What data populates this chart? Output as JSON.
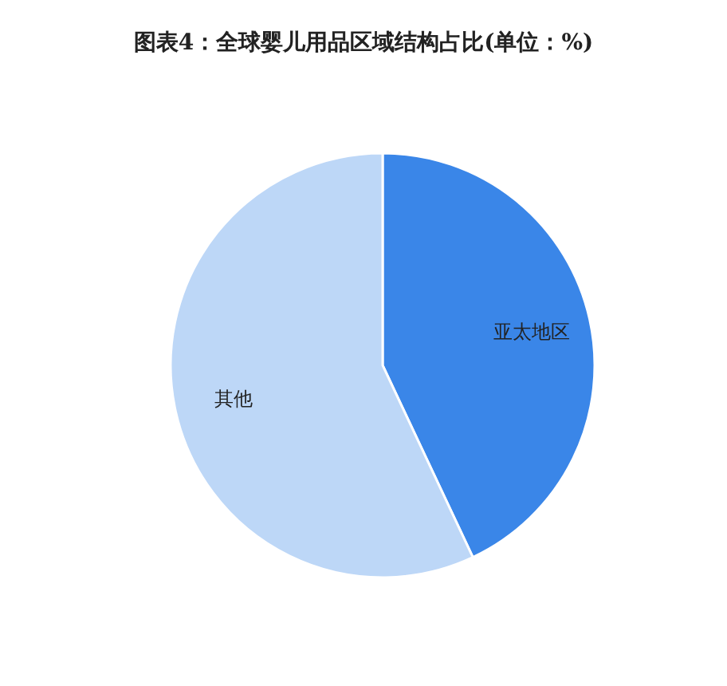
{
  "chart_data": {
    "type": "pie",
    "title": "图表4：全球婴儿用品区域结构占比(单位：%)",
    "categories": [
      "亚太地区",
      "其他"
    ],
    "values": [
      43,
      57
    ],
    "colors": [
      "#3a86e8",
      "#bdd7f7"
    ]
  }
}
